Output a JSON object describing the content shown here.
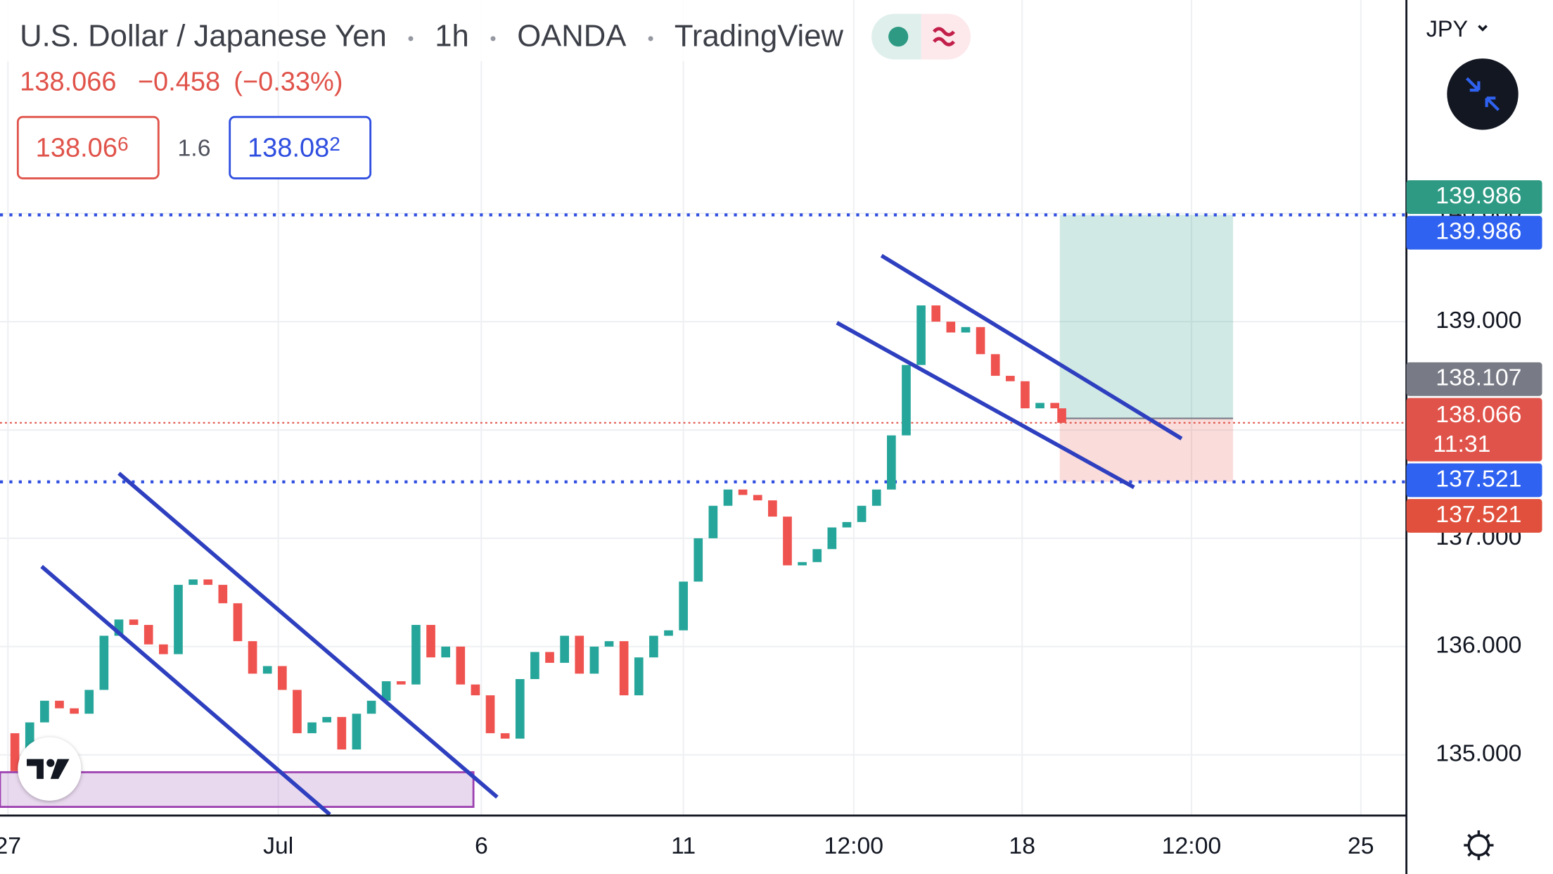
{
  "header": {
    "symbol": "U.S. Dollar / Japanese Yen",
    "interval": "1h",
    "broker": "OANDA",
    "source": "TradingView",
    "last": "138.066",
    "change": "−0.458",
    "change_pct": "(−0.33%)"
  },
  "quote": {
    "bid_main": "138.06",
    "bid_pip": "6",
    "spread": "1.6",
    "ask_main": "138.08",
    "ask_pip": "2"
  },
  "currency": "JPY",
  "chart_data": {
    "type": "candlestick",
    "x": [
      0,
      1.5,
      3,
      4.5,
      6,
      7.5,
      9,
      10.5,
      12,
      13.5,
      15,
      16.5,
      18,
      19.5,
      21,
      22.5,
      24,
      25.5,
      27,
      28.5,
      30,
      31.5,
      33,
      34.5,
      36,
      37.5,
      39,
      40.5,
      42,
      43.5,
      45,
      46.5,
      48,
      49.5,
      51,
      52.5,
      54,
      55.5,
      57,
      58.5,
      60,
      61.5,
      63,
      64.5,
      66,
      67.5,
      69,
      70.5,
      72,
      73.5,
      75,
      76.5,
      78,
      79.5,
      81,
      82.5,
      84,
      85.5,
      87,
      88.5,
      90,
      91.5,
      93,
      94.5,
      96,
      97.5,
      99,
      100.5,
      102,
      103.5,
      105,
      106.5,
      107.2
    ],
    "values": [
      135.2,
      134.85,
      135.3,
      135.5,
      135.43,
      135.38,
      135.6,
      136.1,
      136.25,
      136.2,
      136.02,
      135.93,
      136.57,
      136.62,
      136.57,
      136.4,
      136.05,
      135.75,
      135.82,
      135.6,
      135.2,
      135.3,
      135.35,
      135.05,
      135.38,
      135.5,
      135.68,
      135.65,
      136.2,
      135.9,
      136.0,
      135.65,
      135.55,
      135.2,
      135.15,
      135.7,
      135.95,
      135.85,
      136.1,
      135.75,
      136.0,
      136.05,
      135.55,
      135.9,
      136.1,
      136.15,
      136.6,
      137.0,
      137.3,
      137.45,
      137.4,
      137.35,
      137.2,
      136.75,
      136.78,
      136.9,
      137.1,
      137.15,
      137.3,
      137.45,
      137.95,
      138.6,
      139.15,
      139.0,
      138.9,
      138.95,
      138.7,
      138.5,
      138.45,
      138.2,
      138.25,
      138.2,
      138.066
    ],
    "up_color": "#26a69a",
    "down_color": "#ef5350",
    "xlim": [
      0,
      142
    ],
    "ylim": [
      134.44,
      141.97
    ],
    "xticks": [
      {
        "value": 0.8,
        "label": "27"
      },
      {
        "value": 28.1,
        "label": "Jul"
      },
      {
        "value": 48.6,
        "label": "6"
      },
      {
        "value": 69,
        "label": "11"
      },
      {
        "value": 86.2,
        "label": "12:00"
      },
      {
        "value": 103.2,
        "label": "18"
      },
      {
        "value": 120.3,
        "label": "12:00"
      },
      {
        "value": 137.4,
        "label": "25"
      }
    ],
    "yticks": [
      {
        "value": 135,
        "label": "135.000"
      },
      {
        "value": 136,
        "label": "136.000"
      },
      {
        "value": 137,
        "label": "137.000"
      },
      {
        "value": 138,
        "label": "138.000"
      },
      {
        "value": 139,
        "label": "139.000"
      },
      {
        "value": 140,
        "label": "140.000"
      }
    ],
    "grid": true,
    "levels": [
      {
        "value": 139.986,
        "color": "#2f4ee0"
      },
      {
        "value": 137.521,
        "color": "#2f4ee0"
      }
    ],
    "last_price": {
      "value": 138.066,
      "color": "#e0534a"
    },
    "position": {
      "x": [
        107,
        124.5
      ],
      "target": 139.986,
      "entry": 138.107,
      "stop": 137.521
    },
    "trendlines": [
      {
        "x": [
          4.2,
          33.3
        ],
        "y": [
          136.74,
          134.45
        ]
      },
      {
        "x": [
          12.0,
          50.2
        ],
        "y": [
          137.6,
          134.61
        ]
      },
      {
        "x": [
          84.5,
          114.5
        ],
        "y": [
          138.99,
          137.47
        ]
      },
      {
        "x": [
          89.0,
          119.3
        ],
        "y": [
          139.61,
          137.92
        ]
      }
    ],
    "zone": {
      "x": [
        0,
        47.8
      ],
      "y": [
        134.84,
        134.52
      ]
    },
    "badges": [
      {
        "value": 139.986,
        "color": "#2e9a84"
      },
      {
        "value": 139.986,
        "color": "#2f62f0"
      },
      {
        "value": 138.107,
        "color": "#787b86"
      },
      {
        "value": 138.066,
        "color": "#e0534a",
        "countdown": "11:31"
      },
      {
        "value": 137.521,
        "color": "#2f62f0"
      },
      {
        "value": 137.521,
        "color": "#e0503c"
      }
    ]
  }
}
